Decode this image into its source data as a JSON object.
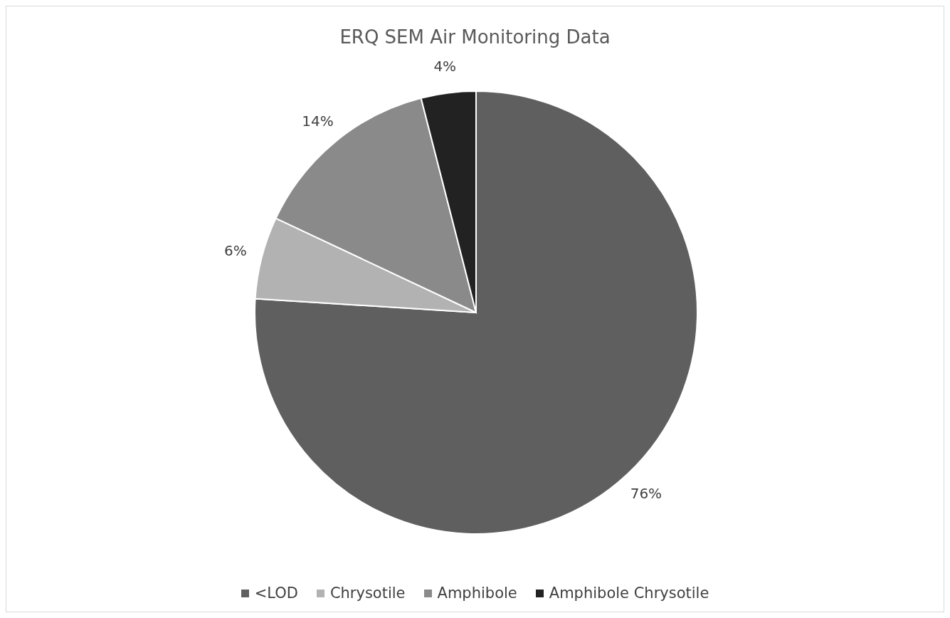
{
  "chart_data": {
    "type": "pie",
    "title": "ERQ SEM Air Monitoring Data",
    "categories": [
      "<LOD",
      "Chrysotile",
      "Amphibole",
      "Amphibole Chrysotile"
    ],
    "values": [
      76,
      6,
      14,
      4
    ],
    "colors": [
      "#5f5f5f",
      "#b2b2b2",
      "#8a8a8a",
      "#222222"
    ],
    "value_labels": [
      "76%",
      "6%",
      "14%",
      "4%"
    ],
    "legend": "bottom"
  }
}
